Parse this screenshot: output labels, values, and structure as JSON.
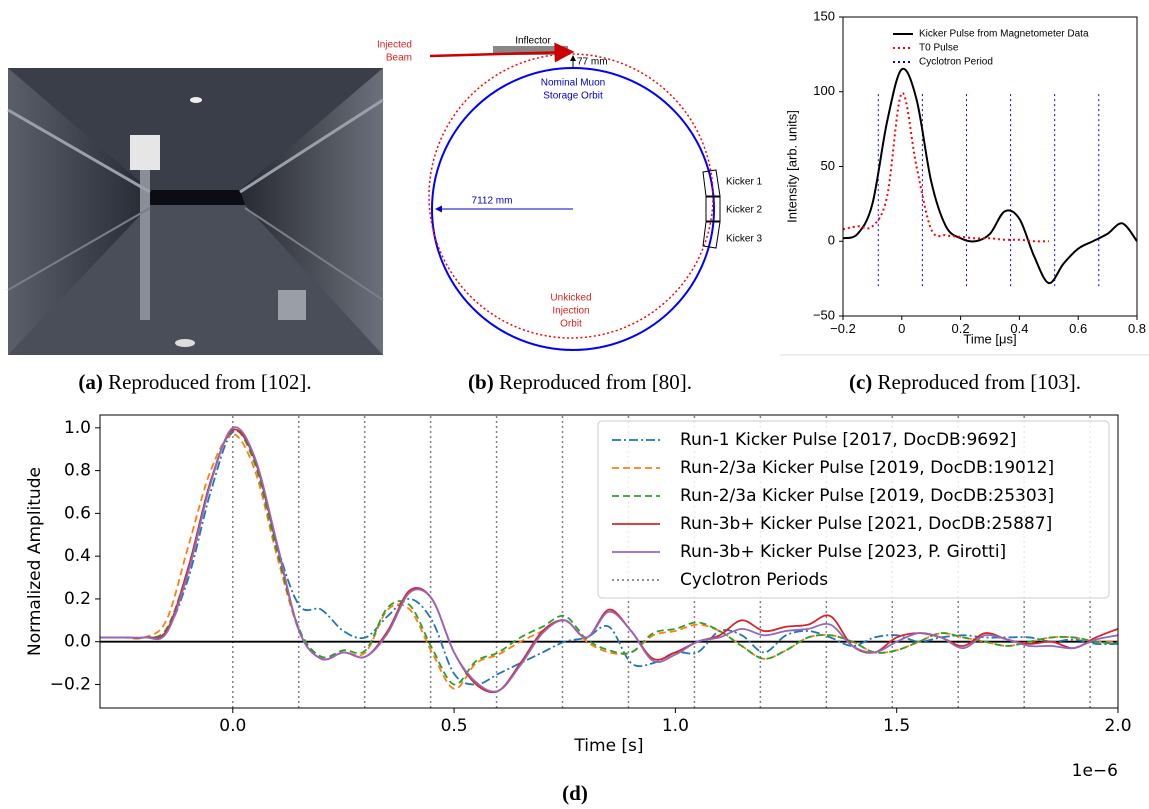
{
  "figure": {
    "captions": [
      {
        "label": "(a)",
        "text": "Reproduced from [102]."
      },
      {
        "label": "(b)",
        "text": "Reproduced from [80]."
      },
      {
        "label": "(c)",
        "text": "Reproduced from [103]."
      },
      {
        "label": "(d)"
      }
    ],
    "diagram": {
      "injected_beam": [
        "Injected",
        "Beam"
      ],
      "inflector": "Inflector",
      "offset": "77 mm",
      "storage_orbit": [
        "Nominal Muon",
        "Storage Orbit"
      ],
      "radius": "7112 mm",
      "kickers": [
        "Kicker 1",
        "Kicker 2",
        "Kicker 3"
      ],
      "injection_orbit": [
        "Unkicked",
        "Injection",
        "Orbit"
      ]
    }
  },
  "chart_data": [
    {
      "type": "line",
      "xlabel": "Time [μs]",
      "ylabel": "Intensity [arb. units]",
      "x": [
        -0.2,
        -0.15,
        -0.1,
        -0.05,
        0,
        0.05,
        0.1,
        0.15,
        0.2,
        0.25,
        0.3,
        0.35,
        0.4,
        0.45,
        0.5,
        0.55,
        0.6,
        0.65,
        0.7,
        0.75,
        0.8
      ],
      "series": [
        {
          "name": "Kicker Pulse from Magnetometer Data",
          "color": "#000000",
          "style": "solid",
          "values": [
            2,
            5,
            25,
            80,
            115,
            95,
            40,
            10,
            2,
            0,
            5,
            20,
            15,
            -10,
            -28,
            -15,
            -5,
            0,
            5,
            12,
            0
          ]
        },
        {
          "name": "T0 Pulse",
          "color": "#ff0000",
          "style": "dotted",
          "values": [
            8,
            10,
            10,
            30,
            99,
            50,
            8,
            4,
            3,
            2,
            2,
            1,
            1,
            0,
            0,
            null,
            null,
            null,
            null,
            null,
            null
          ]
        }
      ],
      "vlines": {
        "name": "Cyclotron Period",
        "color": "#0000ff",
        "style": "dotted",
        "x": [
          -0.08,
          0.07,
          0.22,
          0.37,
          0.52,
          0.67
        ],
        "span": [
          -30,
          100
        ]
      },
      "xlim": [
        -0.2,
        0.8
      ],
      "ylim": [
        -50,
        150
      ],
      "xticks": [
        {
          "value": -0.2,
          "label": "−0.2"
        },
        0,
        0.2,
        0.4,
        0.6,
        0.8
      ],
      "yticks": [
        {
          "value": -50,
          "label": "−50"
        },
        0,
        50,
        100,
        150
      ],
      "grid": false,
      "legend": "upper right"
    },
    {
      "type": "line",
      "xlabel": "Time [s]",
      "ylabel": "Normalized Amplitude",
      "offset_text": "1e−6",
      "x": [
        -0.3,
        -0.25,
        -0.2,
        -0.15,
        -0.1,
        -0.05,
        0,
        0.05,
        0.1,
        0.15,
        0.2,
        0.25,
        0.3,
        0.35,
        0.4,
        0.45,
        0.5,
        0.55,
        0.6,
        0.65,
        0.7,
        0.75,
        0.8,
        0.85,
        0.9,
        0.95,
        1,
        1.05,
        1.1,
        1.15,
        1.2,
        1.25,
        1.3,
        1.35,
        1.4,
        1.45,
        1.5,
        1.55,
        1.6,
        1.65,
        1.7,
        1.75,
        1.8,
        1.85,
        1.9,
        1.95,
        2
      ],
      "series": [
        {
          "name": "Run-1 Kicker Pulse [2017, DocDB:9692]",
          "color": "#1f77b4",
          "style": "dashdot",
          "values": [
            0.02,
            0.02,
            0.02,
            0.05,
            0.3,
            0.7,
            0.98,
            0.85,
            0.45,
            0.17,
            0.15,
            0.05,
            0.02,
            0.12,
            0.2,
            0.1,
            -0.15,
            -0.2,
            -0.15,
            -0.1,
            -0.05,
            0.0,
            0.02,
            0.07,
            -0.1,
            -0.1,
            -0.05,
            -0.05,
            0.05,
            0.03,
            -0.05,
            0.03,
            0.05,
            0.02,
            -0.02,
            0.02,
            0.03,
            0.0,
            0.02,
            0.03,
            0.02,
            0.02,
            0.02,
            0.0,
            0.01,
            -0.01,
            -0.01
          ]
        },
        {
          "name": "Run-2/3a Kicker Pulse [2019, DocDB:19012]",
          "color": "#ff7f0e",
          "style": "dashed",
          "values": [
            0.02,
            0.02,
            0.02,
            0.1,
            0.45,
            0.8,
            0.97,
            0.8,
            0.4,
            0.05,
            -0.08,
            -0.05,
            -0.05,
            0.15,
            0.15,
            -0.05,
            -0.22,
            -0.1,
            -0.06,
            0.0,
            0.05,
            0.1,
            0.0,
            -0.05,
            -0.05,
            0.03,
            0.05,
            0.08,
            0.05,
            -0.02,
            -0.08,
            -0.04,
            0.02,
            0.03,
            0.0,
            -0.05,
            -0.04,
            0.0,
            0.04,
            0.02,
            0.0,
            -0.02,
            0.0,
            0.02,
            0.02,
            0.0,
            0.0
          ]
        },
        {
          "name": "Run-2/3a Kicker Pulse [2019, DocDB:25303]",
          "color": "#2ca02c",
          "style": "dashed",
          "values": [
            0.02,
            0.02,
            0.02,
            0.06,
            0.35,
            0.75,
            0.99,
            0.83,
            0.42,
            0.06,
            -0.07,
            -0.04,
            -0.04,
            0.16,
            0.17,
            -0.03,
            -0.2,
            -0.09,
            -0.05,
            0.02,
            0.07,
            0.12,
            0.01,
            -0.04,
            -0.05,
            0.04,
            0.06,
            0.09,
            0.05,
            -0.02,
            -0.08,
            -0.04,
            0.02,
            0.03,
            0.0,
            -0.05,
            -0.04,
            0.0,
            0.04,
            0.02,
            0.0,
            -0.02,
            0.0,
            0.02,
            0.02,
            0.0,
            -0.01
          ]
        },
        {
          "name": "Run-3b+ Kicker Pulse [2021, DocDB:25887]",
          "color": "#d62728",
          "style": "solid",
          "values": [
            0.02,
            0.02,
            0.02,
            0.05,
            0.35,
            0.75,
            0.99,
            0.85,
            0.45,
            0.05,
            -0.08,
            -0.05,
            -0.07,
            0.05,
            0.24,
            0.2,
            -0.05,
            -0.2,
            -0.23,
            -0.1,
            0.05,
            0.1,
            0.02,
            0.15,
            0.05,
            -0.08,
            -0.05,
            0.0,
            0.03,
            0.1,
            0.05,
            0.07,
            0.08,
            0.12,
            -0.02,
            -0.05,
            0.02,
            0.04,
            0.02,
            -0.02,
            0.04,
            0.01,
            -0.01,
            0.0,
            -0.03,
            0.02,
            0.06
          ]
        },
        {
          "name": "Run-3b+ Kicker Pulse [2023, P. Girotti]",
          "color": "#9467bd",
          "style": "solid",
          "values": [
            0.02,
            0.02,
            0.02,
            0.04,
            0.33,
            0.74,
            1.0,
            0.86,
            0.46,
            0.05,
            -0.08,
            -0.05,
            -0.07,
            0.04,
            0.23,
            0.2,
            -0.05,
            -0.19,
            -0.23,
            -0.11,
            0.04,
            0.1,
            0.02,
            0.14,
            0.05,
            -0.09,
            -0.06,
            0.0,
            0.02,
            0.06,
            0.03,
            0.05,
            0.06,
            0.08,
            -0.02,
            -0.05,
            0.0,
            0.04,
            0.02,
            -0.03,
            0.03,
            0.01,
            -0.02,
            -0.02,
            -0.03,
            0.01,
            0.03
          ]
        }
      ],
      "vlines": {
        "name": "Cyclotron Periods",
        "color": "#808080",
        "style": "dotted",
        "x": [
          0,
          0.149,
          0.298,
          0.447,
          0.596,
          0.745,
          0.894,
          1.043,
          1.192,
          1.341,
          1.49,
          1.639,
          1.788,
          1.937
        ]
      },
      "hline": {
        "value": 0,
        "color": "#000000"
      },
      "xlim": [
        -0.3,
        2.0
      ],
      "ylim": [
        -0.31,
        1.06
      ],
      "xticks": [
        {
          "value": 0,
          "label": "0.0"
        },
        0.5,
        {
          "value": 1,
          "label": "1.0"
        },
        1.5,
        {
          "value": 2,
          "label": "2.0"
        }
      ],
      "yticks": [
        {
          "value": -0.2,
          "label": "−0.2"
        },
        {
          "value": 0,
          "label": "0.0"
        },
        0.2,
        0.4,
        0.6,
        0.8,
        {
          "value": 1,
          "label": "1.0"
        }
      ],
      "grid": false,
      "legend": "upper right"
    }
  ]
}
